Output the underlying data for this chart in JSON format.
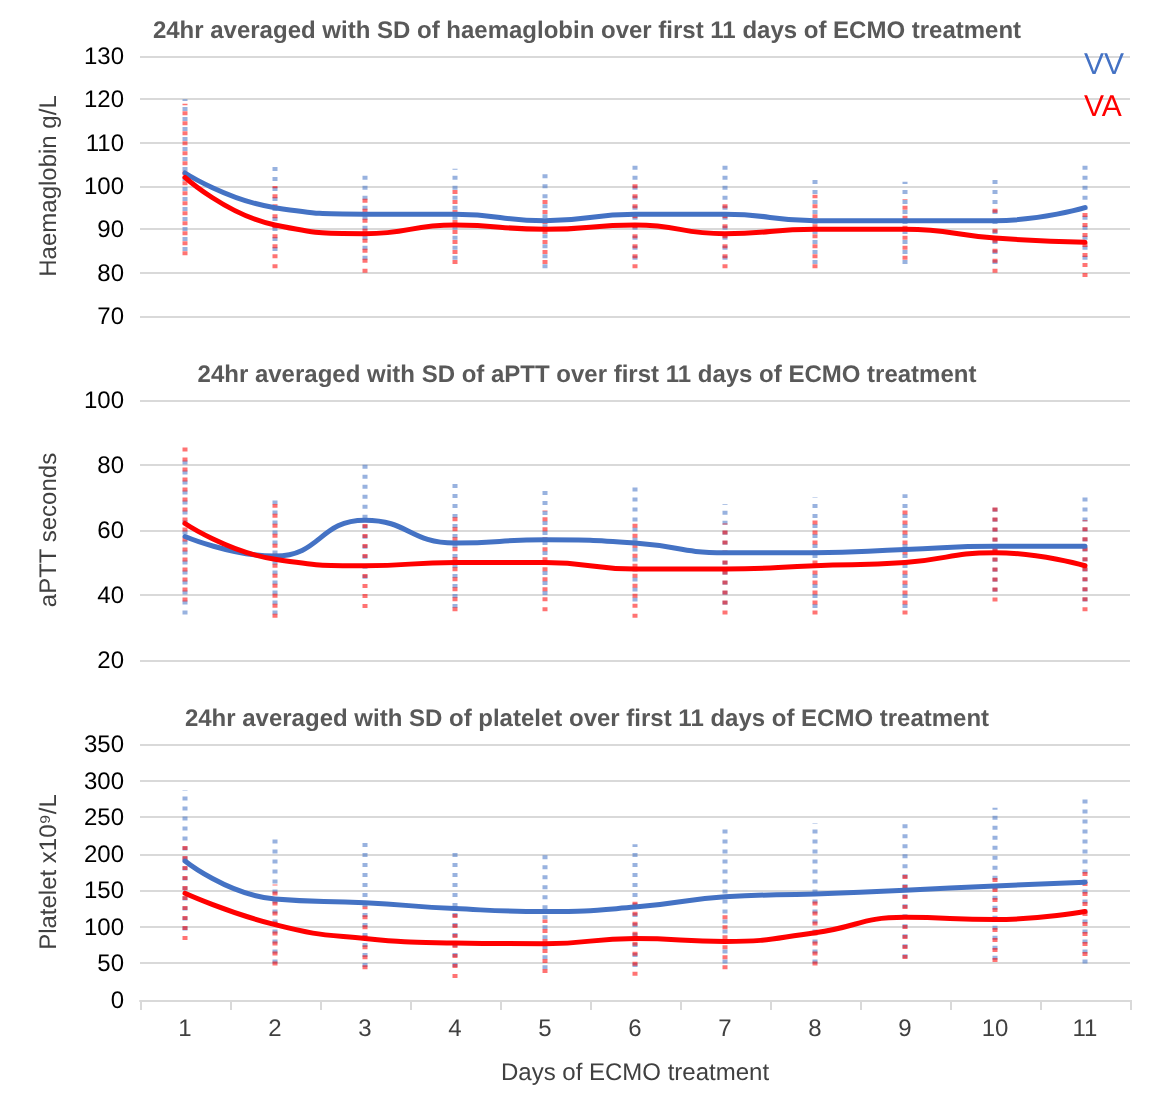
{
  "chart_data": [
    {
      "type": "line",
      "title": "24hr averaged with SD of haemaglobin over first 11 days of ECMO treatment",
      "ylabel": "Haemaglobin g/L",
      "categories": [
        "1",
        "2",
        "3",
        "4",
        "5",
        "6",
        "7",
        "8",
        "9",
        "10",
        "11"
      ],
      "ylim": [
        70,
        130
      ],
      "yticks": [
        70,
        80,
        90,
        100,
        110,
        120,
        130
      ],
      "grid": "y",
      "legend": "top right",
      "marker": "none",
      "line_style": "solid",
      "tick_labels": "y",
      "series": [
        {
          "name": "VV",
          "color": "#4472c4",
          "values": [
            103,
            95,
            93.5,
            93.5,
            92,
            93.5,
            93.5,
            92,
            92,
            92,
            95
          ],
          "errors": [
            [
              85,
              120
            ],
            [
              85,
              105
            ],
            [
              83,
              103
            ],
            [
              83,
              104
            ],
            [
              81,
              103
            ],
            [
              83,
              105
            ],
            [
              83,
              105
            ],
            [
              82,
              102
            ],
            [
              82,
              101
            ],
            [
              82,
              102
            ],
            [
              83,
              106
            ]
          ]
        },
        {
          "name": "VA",
          "color": "#ff0000",
          "values": [
            102,
            91,
            89,
            91,
            90,
            91,
            89,
            90,
            90,
            88,
            87
          ],
          "errors": [
            [
              84,
              119
            ],
            [
              81,
              100
            ],
            [
              80,
              98
            ],
            [
              82,
              100
            ],
            [
              82,
              98
            ],
            [
              81,
              101
            ],
            [
              81,
              97
            ],
            [
              81,
              98
            ],
            [
              83,
              97
            ],
            [
              80,
              96
            ],
            [
              79,
              95
            ]
          ]
        }
      ]
    },
    {
      "type": "line",
      "title": "24hr averaged with SD of aPTT over first 11 days of ECMO treatment",
      "ylabel": "aPTT seconds",
      "categories": [
        "1",
        "2",
        "3",
        "4",
        "5",
        "6",
        "7",
        "8",
        "9",
        "10",
        "11"
      ],
      "ylim": [
        20,
        100
      ],
      "yticks": [
        20,
        40,
        60,
        80,
        100
      ],
      "grid": "y",
      "legend": false,
      "marker": "none",
      "line_style": "solid",
      "tick_labels": "y",
      "series": [
        {
          "color": "#4472c4",
          "values": [
            58,
            52,
            63,
            56,
            57,
            56,
            53,
            53,
            54,
            55,
            55
          ],
          "errors": [
            [
              34,
              82
            ],
            [
              34,
              70
            ],
            [
              45,
              81
            ],
            [
              36,
              75
            ],
            [
              40,
              73
            ],
            [
              38,
              74
            ],
            [
              37,
              68
            ],
            [
              36,
              70
            ],
            [
              36,
              71
            ],
            [
              41,
              68
            ],
            [
              38,
              70
            ]
          ]
        },
        {
          "color": "#ff0000",
          "values": [
            62,
            51,
            49,
            50,
            50,
            48,
            48,
            49,
            50,
            53,
            49
          ],
          "errors": [
            [
              38,
              86
            ],
            [
              33,
              68
            ],
            [
              36,
              63
            ],
            [
              35,
              64
            ],
            [
              35,
              66
            ],
            [
              33,
              63
            ],
            [
              34,
              62
            ],
            [
              34,
              64
            ],
            [
              34,
              66
            ],
            [
              38,
              68
            ],
            [
              35,
              63
            ]
          ]
        }
      ]
    },
    {
      "type": "line",
      "title": "24hr averaged with SD of platelet over first 11 days of ECMO treatment",
      "xlabel": "Days of ECMO treatment",
      "ylabel": "Platelet x10⁹/L",
      "categories": [
        "1",
        "2",
        "3",
        "4",
        "5",
        "6",
        "7",
        "8",
        "9",
        "10",
        "11"
      ],
      "ylim": [
        0,
        350
      ],
      "yticks": [
        0,
        50,
        100,
        150,
        200,
        250,
        300,
        350
      ],
      "grid": "y",
      "legend": false,
      "marker": "none",
      "line_style": "solid",
      "series": [
        {
          "color": "#4472c4",
          "values": [
            190,
            138,
            133,
            125,
            121,
            127,
            141,
            145,
            150,
            156,
            161
          ],
          "errors": [
            [
              95,
              287
            ],
            [
              50,
              227
            ],
            [
              45,
              221
            ],
            [
              45,
              208
            ],
            [
              42,
              201
            ],
            [
              45,
              213
            ],
            [
              50,
              233
            ],
            [
              50,
              242
            ],
            [
              57,
              248
            ],
            [
              55,
              263
            ],
            [
              50,
              277
            ]
          ]
        },
        {
          "color": "#ff0000",
          "values": [
            146,
            103,
            84,
            78,
            77,
            84,
            80,
            92,
            113,
            110,
            121
          ],
          "errors": [
            [
              82,
              211
            ],
            [
              47,
              158
            ],
            [
              42,
              128
            ],
            [
              30,
              128
            ],
            [
              37,
              110
            ],
            [
              33,
              138
            ],
            [
              42,
              123
            ],
            [
              47,
              138
            ],
            [
              56,
              172
            ],
            [
              52,
              170
            ],
            [
              60,
              183
            ]
          ]
        }
      ]
    }
  ]
}
